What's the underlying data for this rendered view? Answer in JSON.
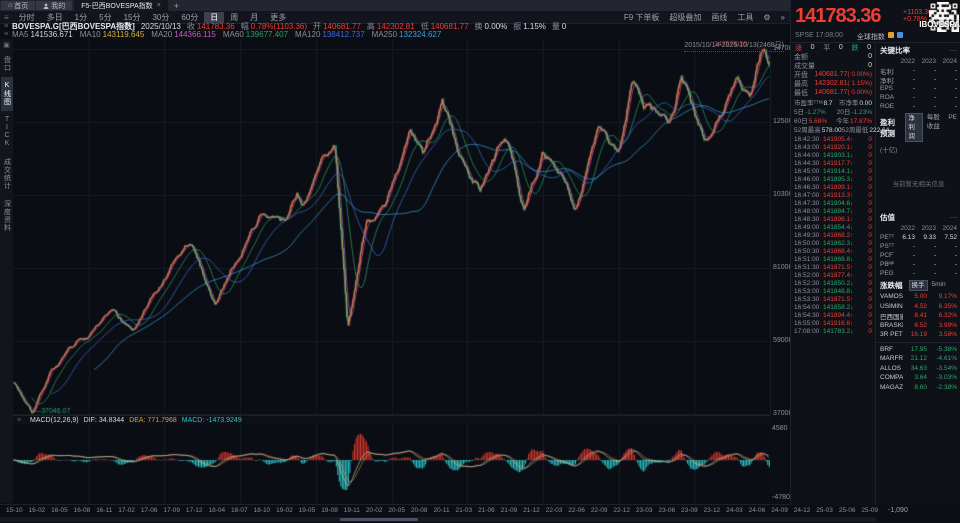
{
  "icons": {
    "home": "⌂",
    "menu": "≡",
    "gear": "⚙",
    "more": "»",
    "collapse": "▾",
    "close": "×",
    "plus": "+",
    "dots": "⋯"
  },
  "titlebar": {
    "home": "首页",
    "mine": "我的",
    "tab": "F5-巴西BOVESPA指数"
  },
  "toolbar": {
    "periods": [
      {
        "label": "分时",
        "cls": ""
      },
      {
        "label": "多日",
        "cls": ""
      },
      {
        "label": "1分",
        "cls": ""
      },
      {
        "label": "5分",
        "cls": ""
      },
      {
        "label": "15分",
        "cls": ""
      },
      {
        "label": "30分",
        "cls": ""
      },
      {
        "label": "60分",
        "cls": ""
      },
      {
        "label": "日",
        "cls": "active"
      },
      {
        "label": "周",
        "cls": ""
      },
      {
        "label": "月",
        "cls": ""
      },
      {
        "label": "更多",
        "cls": ""
      }
    ],
    "right_items": [
      "F9 下单板",
      "超级叠加",
      "画线",
      "工具"
    ]
  },
  "info_bar": {
    "symbol": "BOVESPA.G[巴西BOVESPA指数]",
    "date": "2025/10/13",
    "fields": [
      {
        "label": "收",
        "value": "141783.36",
        "cls": "up"
      },
      {
        "label": "幅",
        "value": "0.78%(1103.36)",
        "cls": "up"
      },
      {
        "label": "开",
        "value": "140681.77",
        "cls": "up"
      },
      {
        "label": "高",
        "value": "142302.81",
        "cls": "up"
      },
      {
        "label": "低",
        "value": "140681.77",
        "cls": "up"
      },
      {
        "label": "换",
        "value": "0.00%",
        "cls": "plain"
      },
      {
        "label": "振",
        "value": "1.15%",
        "cls": "plain"
      },
      {
        "label": "量",
        "value": "0",
        "cls": "plain"
      }
    ]
  },
  "ma_bar": {
    "items": [
      {
        "label": "MA5",
        "value": "141536.671",
        "color": "#d8d8d8"
      },
      {
        "label": "MA10",
        "value": "143119.645",
        "color": "#d8b23c"
      },
      {
        "label": "MA20",
        "value": "144366.115",
        "color": "#c85ac8"
      },
      {
        "label": "MA60",
        "value": "139677.407",
        "color": "#2f9e60"
      },
      {
        "label": "MA120",
        "value": "138412.737",
        "color": "#3c6cd8"
      },
      {
        "label": "MA250",
        "value": "132324.627",
        "color": "#3aa0d8"
      }
    ]
  },
  "sidebar": {
    "items": [
      {
        "label": "盘口",
        "cls": ""
      },
      {
        "label": "K线图",
        "cls": "active"
      },
      {
        "label": "TICK",
        "cls": ""
      },
      {
        "label": "成交统计",
        "cls": ""
      },
      {
        "label": "深度资料",
        "cls": ""
      }
    ]
  },
  "chart": {
    "range_label": "2015/10/14-2025/10/13(2468日)",
    "high_marker": "147578.20",
    "low_marker": "37046.07"
  },
  "macd": {
    "title": "MACD(12,26,9)",
    "dif_label": "DIF:",
    "dif": "34.8344",
    "dea_label": "DEA:",
    "dea": "771.7968",
    "macd_label": "MACD:",
    "macd": "-1473.9249",
    "scale_top": "4580",
    "scale_bottom": "-4780"
  },
  "x_axis": {
    "extra_value": "-1,090"
  },
  "header_quote": {
    "price": "141783.36",
    "change": "+1103.36",
    "pct": "+0.78%",
    "exchange": "SPSE",
    "time": "17:08:00",
    "tag": "全球指数",
    "brand": "IBOVESPA"
  },
  "panel": {
    "adv": {
      "up_label": "涨",
      "up": "0",
      "flat_label": "平",
      "flat": "0",
      "down_label": "跌",
      "down": "0"
    },
    "quote_rows": [
      {
        "label": "金额",
        "value": "0",
        "extra": "",
        "cls": "plain"
      },
      {
        "label": "成交量",
        "value": "0",
        "extra": "",
        "cls": "plain"
      },
      {
        "label": "开盘",
        "value": "140681.77",
        "extra": "( 0.00%)",
        "cls": "up"
      },
      {
        "label": "最高",
        "value": "142302.81",
        "extra": "( 1.15%)",
        "cls": "up"
      },
      {
        "label": "最低",
        "value": "140681.77",
        "extra": "( 0.00%)",
        "cls": "up"
      }
    ],
    "pair_rows": [
      {
        "l1": "市盈率ᵀᵀᴹ",
        "v1": "8.7",
        "c1": "plain",
        "l2": "市净率",
        "v2": "0.00",
        "c2": "plain"
      },
      {
        "l1": "5日",
        "v1": "-1.27%",
        "c1": "down",
        "l2": "20日",
        "v2": "-1.23%",
        "c2": "down"
      },
      {
        "l1": "60日",
        "v1": "5.68%",
        "c1": "up",
        "l2": "今年",
        "v2": "17.87%",
        "c2": "up"
      },
      {
        "l1": "52周最高",
        "v1": "578.00",
        "c1": "plain",
        "l2": "52周最低",
        "v2": "222.64",
        "c2": "plain"
      }
    ],
    "ticks": [
      {
        "t": "16:42:30",
        "p": "141905.4",
        "a": "↑",
        "d": "up",
        "v": "0"
      },
      {
        "t": "16:43:00",
        "p": "141920.1",
        "a": "↑",
        "d": "up",
        "v": "0"
      },
      {
        "t": "16:44:00",
        "p": "141903.1",
        "a": "↓",
        "d": "down",
        "v": "0"
      },
      {
        "t": "16:44:30",
        "p": "141917.7",
        "a": "↑",
        "d": "up",
        "v": "0"
      },
      {
        "t": "16:45:00",
        "p": "141914.1",
        "a": "↓",
        "d": "down",
        "v": "0"
      },
      {
        "t": "16:46:00",
        "p": "141895.3",
        "a": "↓",
        "d": "down",
        "v": "0"
      },
      {
        "t": "16:46:30",
        "p": "141899.1",
        "a": "↑",
        "d": "up",
        "v": "0"
      },
      {
        "t": "16:47:00",
        "p": "141913.3",
        "a": "↑",
        "d": "up",
        "v": "0"
      },
      {
        "t": "16:47:30",
        "p": "141904.6",
        "a": "↓",
        "d": "down",
        "v": "0"
      },
      {
        "t": "16:48:00",
        "p": "141884.7",
        "a": "↓",
        "d": "down",
        "v": "0"
      },
      {
        "t": "16:48:30",
        "p": "141896.1",
        "a": "↑",
        "d": "up",
        "v": "0"
      },
      {
        "t": "16:49:00",
        "p": "141854.4",
        "a": "↓",
        "d": "down",
        "v": "0"
      },
      {
        "t": "16:49:30",
        "p": "141868.2",
        "a": "↑",
        "d": "up",
        "v": "0"
      },
      {
        "t": "16:50:00",
        "p": "141862.3",
        "a": "↓",
        "d": "down",
        "v": "0"
      },
      {
        "t": "16:50:30",
        "p": "141868.4",
        "a": "↑",
        "d": "up",
        "v": "0"
      },
      {
        "t": "16:51:00",
        "p": "141868.8",
        "a": "↓",
        "d": "down",
        "v": "0"
      },
      {
        "t": "16:51:30",
        "p": "141871.5",
        "a": "↑",
        "d": "up",
        "v": "0"
      },
      {
        "t": "16:52:00",
        "p": "141877.4",
        "a": "↑",
        "d": "up",
        "v": "0"
      },
      {
        "t": "16:52:30",
        "p": "141850.2",
        "a": "↓",
        "d": "down",
        "v": "0"
      },
      {
        "t": "16:53:00",
        "p": "141848.8",
        "a": "↓",
        "d": "down",
        "v": "0"
      },
      {
        "t": "16:53:30",
        "p": "141871.5",
        "a": "↑",
        "d": "up",
        "v": "0"
      },
      {
        "t": "16:54:00",
        "p": "141858.2",
        "a": "↓",
        "d": "down",
        "v": "0"
      },
      {
        "t": "16:54:30",
        "p": "141894.4",
        "a": "↑",
        "d": "up",
        "v": "0"
      },
      {
        "t": "16:55:00",
        "p": "141916.6",
        "a": "↑",
        "d": "up",
        "v": "0"
      },
      {
        "t": "17:08:00",
        "p": "141783.2",
        "a": "↓",
        "d": "down",
        "v": "0"
      }
    ],
    "ratio": {
      "title": "关键比率",
      "years": [
        "2022",
        "2023",
        "2024"
      ],
      "rows": [
        {
          "n": "毛利率",
          "a": "-",
          "b": "-",
          "c": "-"
        },
        {
          "n": "净利率",
          "a": "-",
          "b": "-",
          "c": "-"
        },
        {
          "n": "EPS",
          "a": "-",
          "b": "-",
          "c": "-"
        },
        {
          "n": "ROA",
          "a": "-",
          "b": "-",
          "c": "-"
        },
        {
          "n": "ROE",
          "a": "-",
          "b": "-",
          "c": "-"
        }
      ]
    },
    "forecast": {
      "title": "盈利预测",
      "tabs": [
        {
          "label": "净利润",
          "cls": "active"
        },
        {
          "label": "每股收益",
          "cls": ""
        },
        {
          "label": "PE",
          "cls": ""
        }
      ],
      "unit": "(十亿)",
      "empty": "当前暂无相关信息"
    },
    "valuation": {
      "title": "估值",
      "years": [
        "2022",
        "2023",
        "2024"
      ],
      "rows": [
        {
          "n": "PEᵀᵀᴹ",
          "a": "6.13",
          "b": "9.33",
          "c": "7.52"
        },
        {
          "n": "PSᵀᵀᴹ",
          "a": "-",
          "b": "-",
          "c": "-"
        },
        {
          "n": "PCFᵀᵀᴹ",
          "a": "-",
          "b": "-",
          "c": "-"
        },
        {
          "n": "PBᴹᴿ",
          "a": "-",
          "b": "-",
          "c": "-"
        },
        {
          "n": "PEG",
          "a": "-",
          "b": "-",
          "c": "-"
        }
      ]
    },
    "movers": {
      "title": "涨跌幅",
      "tabs": [
        {
          "label": "换手",
          "cls": "active"
        },
        {
          "label": "5min",
          "cls": ""
        }
      ],
      "gainers": [
        {
          "name": "VAMOS ..",
          "price": "5.00",
          "pct": "9.17%",
          "cls": "up"
        },
        {
          "name": "USIMINA..",
          "price": "4.52",
          "pct": "6.35%",
          "cls": "up"
        },
        {
          "name": "巴西国家..",
          "price": "8.41",
          "pct": "6.32%",
          "cls": "up"
        },
        {
          "name": "BRASKE..",
          "price": "6.52",
          "pct": "3.99%",
          "cls": "up"
        },
        {
          "name": "3R PETR..",
          "price": "16.19",
          "pct": "3.58%",
          "cls": "up"
        }
      ],
      "losers": [
        {
          "name": "BRF",
          "price": "17.95",
          "pct": "-5.38%",
          "cls": "down"
        },
        {
          "name": "MARFRIG..",
          "price": "21.12",
          "pct": "-4.61%",
          "cls": "down"
        },
        {
          "name": "ALLOS",
          "price": "34.63",
          "pct": "-3.54%",
          "cls": "down"
        },
        {
          "name": "COMPA..",
          "price": "3.64",
          "pct": "-3.03%",
          "cls": "down"
        },
        {
          "name": "MAGAZI..",
          "price": "8.60",
          "pct": "-2.38%",
          "cls": "down"
        }
      ]
    }
  },
  "chart_data": {
    "type": "candlestick",
    "title": "BOVESPA.G 巴西BOVESPA指数 日K",
    "date_range": "2015/10/14 - 2025/10/13 (2468日)",
    "close": 141783.36,
    "high": 147578.2,
    "low": 37046.07,
    "y_ticks": [
      147000,
      125000,
      103000,
      81000,
      59000,
      37000
    ],
    "ylim": [
      35000,
      149000
    ],
    "x_labels": [
      "15-10",
      "16-02",
      "16-05",
      "16-08",
      "16-11",
      "17-02",
      "17-06",
      "17-09",
      "17-12",
      "18-04",
      "18-07",
      "18-10",
      "19-02",
      "19-05",
      "19-08",
      "19-11",
      "20-02",
      "20-05",
      "20-08",
      "20-11",
      "21-03",
      "21-06",
      "21-09",
      "21-12",
      "22-03",
      "22-06",
      "22-09",
      "22-12",
      "23-03",
      "23-06",
      "23-09",
      "23-12",
      "24-03",
      "24-06",
      "24-09",
      "24-12",
      "25-03",
      "25-06",
      "25-09"
    ],
    "anchors": [
      [
        0.0,
        47000
      ],
      [
        0.025,
        37046
      ],
      [
        0.05,
        50000
      ],
      [
        0.083,
        57500
      ],
      [
        0.108,
        61000
      ],
      [
        0.133,
        66500
      ],
      [
        0.158,
        62000
      ],
      [
        0.2,
        76000
      ],
      [
        0.233,
        87000
      ],
      [
        0.267,
        70000
      ],
      [
        0.3,
        87000
      ],
      [
        0.325,
        97000
      ],
      [
        0.358,
        94000
      ],
      [
        0.375,
        104000
      ],
      [
        0.383,
        100000
      ],
      [
        0.425,
        119000
      ],
      [
        0.442,
        61690
      ],
      [
        0.467,
        96000
      ],
      [
        0.492,
        98000
      ],
      [
        0.508,
        110000
      ],
      [
        0.525,
        119000
      ],
      [
        0.542,
        112000
      ],
      [
        0.567,
        129000
      ],
      [
        0.592,
        113000
      ],
      [
        0.617,
        105000
      ],
      [
        0.65,
        120000
      ],
      [
        0.675,
        98000
      ],
      [
        0.7,
        116000
      ],
      [
        0.725,
        109000
      ],
      [
        0.742,
        101000
      ],
      [
        0.775,
        122000
      ],
      [
        0.8,
        113000
      ],
      [
        0.817,
        134000
      ],
      [
        0.842,
        128000
      ],
      [
        0.867,
        121000
      ],
      [
        0.883,
        136000
      ],
      [
        0.917,
        120000
      ],
      [
        0.933,
        125000
      ],
      [
        0.958,
        138000
      ],
      [
        0.975,
        133000
      ],
      [
        0.992,
        146500
      ],
      [
        1.0,
        141783
      ]
    ],
    "moving_averages": {
      "MA5": 141536.671,
      "MA10": 143119.645,
      "MA20": 144366.115,
      "MA60": 139677.407,
      "MA120": 138412.737,
      "MA250": 132324.627
    },
    "macd": {
      "params": [
        12,
        26,
        9
      ],
      "dif": 34.8344,
      "dea": 771.7968,
      "macd": -1473.9249
    },
    "colors": {
      "up": "#d8352c",
      "down": "#1f9d6d",
      "macd_up": "#d8352c",
      "macd_down": "#2bc8c8",
      "dea_line": "#e09a3c",
      "dif_line": "#d8d8d8"
    }
  }
}
